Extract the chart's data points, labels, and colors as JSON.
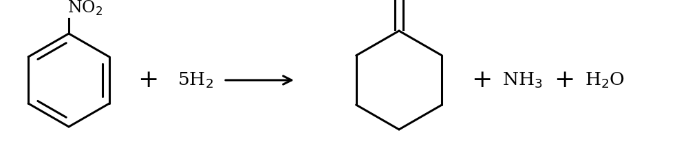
{
  "bg_color": "#ffffff",
  "line_color": "#000000",
  "line_width": 2.2,
  "fig_width": 10.0,
  "fig_height": 2.35,
  "dpi": 100,
  "font_size_large": 18,
  "font_size_sub": 13,
  "text_color": "#000000"
}
